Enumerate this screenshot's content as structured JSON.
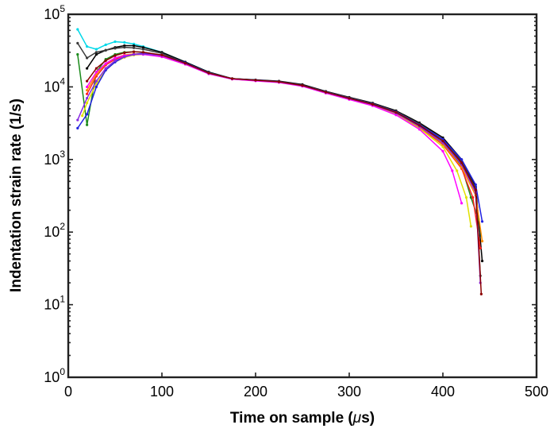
{
  "chart_data": {
    "type": "line",
    "title": "",
    "xlabel_prefix": "Time on sample (",
    "xlabel_symbol": "μ",
    "xlabel_suffix": "s)",
    "ylabel": "Indentation strain rate (1/s)",
    "xlim": [
      0,
      500
    ],
    "ylim": [
      1,
      100000
    ],
    "yscale": "log",
    "grid": false,
    "legend": "none",
    "x_ticks": [
      {
        "value": 0,
        "label": "0"
      },
      {
        "value": 100,
        "label": "100"
      },
      {
        "value": 200,
        "label": "200"
      },
      {
        "value": 300,
        "label": "300"
      },
      {
        "value": 400,
        "label": "400"
      },
      {
        "value": 500,
        "label": "500"
      }
    ],
    "y_ticks": [
      {
        "value": 1,
        "base": "10",
        "exp": "0"
      },
      {
        "value": 10,
        "base": "10",
        "exp": "1"
      },
      {
        "value": 100,
        "base": "10",
        "exp": "2"
      },
      {
        "value": 1000,
        "base": "10",
        "exp": "3"
      },
      {
        "value": 10000,
        "base": "10",
        "exp": "4"
      },
      {
        "value": 100000,
        "base": "10",
        "exp": "5"
      }
    ],
    "series": [
      {
        "color": "#00d8e8",
        "points": [
          [
            10,
            62000
          ],
          [
            20,
            36000
          ],
          [
            30,
            33000
          ],
          [
            40,
            38000
          ],
          [
            50,
            42000
          ],
          [
            60,
            41000
          ],
          [
            70,
            39000
          ],
          [
            80,
            36000
          ],
          [
            100,
            30000
          ],
          [
            125,
            22000
          ],
          [
            150,
            16000
          ],
          [
            175,
            13000
          ],
          [
            200,
            12500
          ],
          [
            225,
            11800
          ],
          [
            250,
            10500
          ],
          [
            275,
            8500
          ],
          [
            300,
            7000
          ],
          [
            325,
            5800
          ],
          [
            350,
            4500
          ],
          [
            375,
            3000
          ],
          [
            400,
            1800
          ],
          [
            420,
            900
          ],
          [
            435,
            350
          ],
          [
            440,
            90
          ]
        ]
      },
      {
        "color": "#000000",
        "points": [
          [
            20,
            18000
          ],
          [
            30,
            28000
          ],
          [
            40,
            32000
          ],
          [
            50,
            35000
          ],
          [
            60,
            37000
          ],
          [
            70,
            37000
          ],
          [
            80,
            35000
          ],
          [
            100,
            30000
          ],
          [
            125,
            22000
          ],
          [
            150,
            16000
          ],
          [
            175,
            13000
          ],
          [
            200,
            12500
          ],
          [
            225,
            12000
          ],
          [
            250,
            10800
          ],
          [
            275,
            8700
          ],
          [
            300,
            7200
          ],
          [
            325,
            6000
          ],
          [
            350,
            4700
          ],
          [
            375,
            3200
          ],
          [
            400,
            2000
          ],
          [
            420,
            1000
          ],
          [
            435,
            420
          ],
          [
            442,
            40
          ]
        ]
      },
      {
        "color": "#3a3a3a",
        "points": [
          [
            10,
            40000
          ],
          [
            20,
            25000
          ],
          [
            30,
            30000
          ],
          [
            40,
            32000
          ],
          [
            50,
            34000
          ],
          [
            60,
            35000
          ],
          [
            70,
            34500
          ],
          [
            80,
            33000
          ],
          [
            100,
            29000
          ],
          [
            125,
            21500
          ],
          [
            150,
            15800
          ],
          [
            175,
            13000
          ],
          [
            200,
            12400
          ],
          [
            225,
            11900
          ],
          [
            250,
            10600
          ],
          [
            275,
            8600
          ],
          [
            300,
            7100
          ],
          [
            325,
            5900
          ],
          [
            350,
            4600
          ],
          [
            375,
            3100
          ],
          [
            400,
            1900
          ],
          [
            420,
            950
          ],
          [
            435,
            400
          ],
          [
            440,
            25
          ]
        ]
      },
      {
        "color": "#1a8a1a",
        "points": [
          [
            10,
            28000
          ],
          [
            20,
            3000
          ],
          [
            30,
            16000
          ],
          [
            40,
            24000
          ],
          [
            50,
            28000
          ],
          [
            60,
            30000
          ],
          [
            70,
            30500
          ],
          [
            80,
            30000
          ],
          [
            100,
            27000
          ],
          [
            125,
            21000
          ],
          [
            150,
            15500
          ],
          [
            175,
            13000
          ],
          [
            200,
            12300
          ],
          [
            225,
            11700
          ],
          [
            250,
            10400
          ],
          [
            275,
            8400
          ],
          [
            300,
            6900
          ],
          [
            325,
            5700
          ],
          [
            350,
            4400
          ],
          [
            375,
            2900
          ],
          [
            400,
            1700
          ],
          [
            420,
            800
          ],
          [
            430,
            300
          ],
          [
            438,
            150
          ]
        ]
      },
      {
        "color": "#ff2020",
        "points": [
          [
            20,
            8000
          ],
          [
            30,
            14000
          ],
          [
            40,
            20000
          ],
          [
            50,
            24000
          ],
          [
            60,
            27000
          ],
          [
            70,
            28500
          ],
          [
            80,
            28500
          ],
          [
            100,
            26000
          ],
          [
            125,
            20500
          ],
          [
            150,
            15200
          ],
          [
            175,
            12800
          ],
          [
            200,
            12200
          ],
          [
            225,
            11600
          ],
          [
            250,
            10300
          ],
          [
            275,
            8300
          ],
          [
            300,
            6800
          ],
          [
            325,
            5600
          ],
          [
            350,
            4300
          ],
          [
            375,
            2800
          ],
          [
            400,
            1600
          ],
          [
            420,
            750
          ],
          [
            432,
            300
          ],
          [
            440,
            60
          ]
        ]
      },
      {
        "color": "#ff8c00",
        "points": [
          [
            20,
            9000
          ],
          [
            30,
            15000
          ],
          [
            40,
            21000
          ],
          [
            50,
            25000
          ],
          [
            60,
            27500
          ],
          [
            70,
            28500
          ],
          [
            80,
            28500
          ],
          [
            100,
            26500
          ],
          [
            125,
            20800
          ],
          [
            150,
            15300
          ],
          [
            175,
            12900
          ],
          [
            200,
            12250
          ],
          [
            225,
            11650
          ],
          [
            250,
            10350
          ],
          [
            275,
            8350
          ],
          [
            300,
            6850
          ],
          [
            325,
            5650
          ],
          [
            350,
            4350
          ],
          [
            375,
            2850
          ],
          [
            400,
            1650
          ],
          [
            420,
            780
          ],
          [
            435,
            320
          ],
          [
            442,
            75
          ]
        ]
      },
      {
        "color": "#e0e000",
        "points": [
          [
            15,
            4000
          ],
          [
            20,
            6000
          ],
          [
            30,
            11000
          ],
          [
            40,
            17000
          ],
          [
            50,
            22000
          ],
          [
            60,
            25500
          ],
          [
            70,
            27500
          ],
          [
            80,
            28000
          ],
          [
            100,
            26500
          ],
          [
            125,
            20700
          ],
          [
            150,
            15300
          ],
          [
            175,
            12900
          ],
          [
            200,
            12200
          ],
          [
            225,
            11600
          ],
          [
            250,
            10300
          ],
          [
            275,
            8250
          ],
          [
            300,
            6750
          ],
          [
            325,
            5550
          ],
          [
            350,
            4200
          ],
          [
            375,
            2700
          ],
          [
            400,
            1500
          ],
          [
            415,
            700
          ],
          [
            425,
            300
          ],
          [
            430,
            120
          ]
        ]
      },
      {
        "color": "#ff00ff",
        "points": [
          [
            20,
            10000
          ],
          [
            30,
            16000
          ],
          [
            40,
            21000
          ],
          [
            50,
            25000
          ],
          [
            60,
            27000
          ],
          [
            70,
            28000
          ],
          [
            80,
            28000
          ],
          [
            100,
            26000
          ],
          [
            125,
            20500
          ],
          [
            150,
            15100
          ],
          [
            175,
            12800
          ],
          [
            200,
            12100
          ],
          [
            225,
            11500
          ],
          [
            250,
            10200
          ],
          [
            275,
            8200
          ],
          [
            300,
            6700
          ],
          [
            325,
            5500
          ],
          [
            350,
            4100
          ],
          [
            375,
            2600
          ],
          [
            400,
            1300
          ],
          [
            410,
            700
          ],
          [
            420,
            250
          ]
        ]
      },
      {
        "color": "#2020e0",
        "points": [
          [
            10,
            2700
          ],
          [
            20,
            4200
          ],
          [
            30,
            10000
          ],
          [
            40,
            17000
          ],
          [
            50,
            22000
          ],
          [
            60,
            26000
          ],
          [
            70,
            28000
          ],
          [
            80,
            29000
          ],
          [
            100,
            27500
          ],
          [
            125,
            21500
          ],
          [
            150,
            15600
          ],
          [
            175,
            13000
          ],
          [
            200,
            12400
          ],
          [
            225,
            11800
          ],
          [
            250,
            10500
          ],
          [
            275,
            8500
          ],
          [
            300,
            7000
          ],
          [
            325,
            5800
          ],
          [
            350,
            4500
          ],
          [
            375,
            3000
          ],
          [
            400,
            1900
          ],
          [
            420,
            1000
          ],
          [
            435,
            450
          ],
          [
            442,
            140
          ]
        ]
      },
      {
        "color": "#8a2be2",
        "points": [
          [
            10,
            3500
          ],
          [
            20,
            7000
          ],
          [
            30,
            12000
          ],
          [
            40,
            18000
          ],
          [
            50,
            23000
          ],
          [
            60,
            26000
          ],
          [
            70,
            28000
          ],
          [
            80,
            28500
          ],
          [
            100,
            27000
          ],
          [
            125,
            21000
          ],
          [
            150,
            15400
          ],
          [
            175,
            12900
          ],
          [
            200,
            12300
          ],
          [
            225,
            11700
          ],
          [
            250,
            10400
          ],
          [
            275,
            8400
          ],
          [
            300,
            6900
          ],
          [
            325,
            5700
          ],
          [
            350,
            4350
          ],
          [
            375,
            2850
          ],
          [
            400,
            1700
          ],
          [
            420,
            850
          ],
          [
            435,
            350
          ],
          [
            440,
            20
          ]
        ]
      },
      {
        "color": "#8b0000",
        "points": [
          [
            20,
            12000
          ],
          [
            30,
            18000
          ],
          [
            40,
            23000
          ],
          [
            50,
            27000
          ],
          [
            60,
            29500
          ],
          [
            70,
            30500
          ],
          [
            80,
            30000
          ],
          [
            100,
            27500
          ],
          [
            125,
            21200
          ],
          [
            150,
            15500
          ],
          [
            175,
            13000
          ],
          [
            200,
            12350
          ],
          [
            225,
            11750
          ],
          [
            250,
            10450
          ],
          [
            275,
            8450
          ],
          [
            300,
            6950
          ],
          [
            325,
            5750
          ],
          [
            350,
            4450
          ],
          [
            375,
            2950
          ],
          [
            400,
            1800
          ],
          [
            420,
            900
          ],
          [
            435,
            380
          ],
          [
            441,
            14
          ]
        ]
      }
    ]
  }
}
